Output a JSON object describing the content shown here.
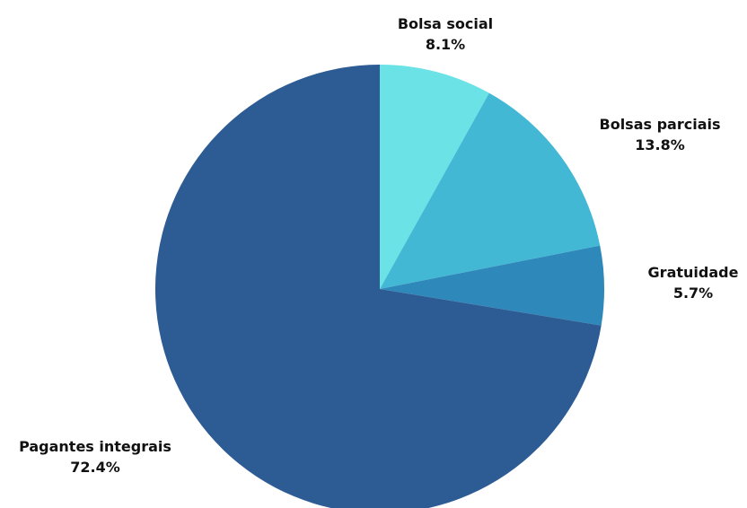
{
  "chart_data": {
    "type": "pie",
    "start_angle": "12 o'clock",
    "direction": "clockwise",
    "slices": [
      {
        "label": "Bolsa social",
        "value": 8.1,
        "value_label": "8.1%",
        "color": "#6ae2e6"
      },
      {
        "label": "Bolsas parciais",
        "value": 13.8,
        "value_label": "13.8%",
        "color": "#43b8d5"
      },
      {
        "label": "Gratuidade",
        "value": 5.7,
        "value_label": "5.7%",
        "color": "#2e88b9"
      },
      {
        "label": "Pagantes integrais",
        "value": 72.4,
        "value_label": "72.4%",
        "color": "#2d5c95"
      }
    ]
  }
}
